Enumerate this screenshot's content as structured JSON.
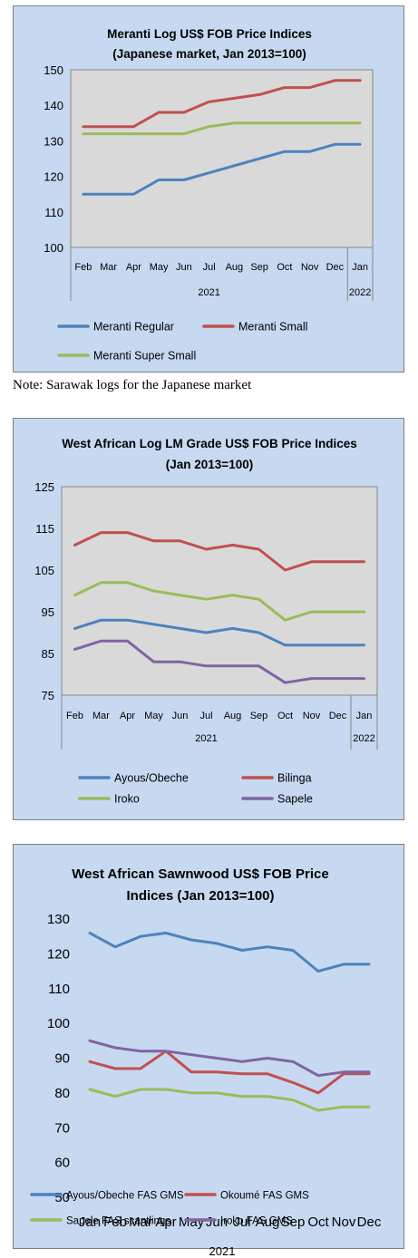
{
  "note": "Note: Sarawak logs for the Japanese market",
  "chart_data": [
    {
      "type": "line",
      "title": "Meranti Log US$ FOB Price Indices",
      "subtitle": "(Japanese market, Jan 2013=100)",
      "categories": [
        "Feb",
        "Mar",
        "Apr",
        "May",
        "Jun",
        "Jul",
        "Aug",
        "Sep",
        "Oct",
        "Nov",
        "Dec",
        "Jan"
      ],
      "year_labels": [
        "2021",
        "2022"
      ],
      "ylim": [
        100,
        150
      ],
      "yticks": [
        100,
        110,
        120,
        130,
        140,
        150
      ],
      "grid": false,
      "legend_position": "bottom",
      "series": [
        {
          "name": "Meranti Regular",
          "color": "#4f81bd",
          "values": [
            115,
            115,
            115,
            119,
            119,
            121,
            123,
            125,
            127,
            127,
            129,
            129
          ]
        },
        {
          "name": "Meranti Small",
          "color": "#c0504d",
          "values": [
            134,
            134,
            134,
            138,
            138,
            141,
            142,
            143,
            145,
            145,
            147,
            147
          ]
        },
        {
          "name": "Meranti Super Small",
          "color": "#9bbb59",
          "values": [
            132,
            132,
            132,
            132,
            132,
            134,
            135,
            135,
            135,
            135,
            135,
            135
          ]
        }
      ]
    },
    {
      "type": "line",
      "title": "West African Log LM Grade US$ FOB Price Indices",
      "subtitle": "(Jan 2013=100)",
      "categories": [
        "Feb",
        "Mar",
        "Apr",
        "May",
        "Jun",
        "Jul",
        "Aug",
        "Sep",
        "Oct",
        "Nov",
        "Dec",
        "Jan"
      ],
      "year_labels": [
        "2021",
        "2022"
      ],
      "ylim": [
        75,
        125
      ],
      "yticks": [
        75,
        85,
        95,
        105,
        115,
        125
      ],
      "grid": false,
      "legend_position": "bottom",
      "series": [
        {
          "name": "Ayous/Obeche",
          "color": "#4f81bd",
          "values": [
            91,
            93,
            93,
            92,
            91,
            90,
            91,
            90,
            87,
            87,
            87,
            87
          ]
        },
        {
          "name": "Bilinga",
          "color": "#c0504d",
          "values": [
            111,
            114,
            114,
            112,
            112,
            110,
            111,
            110,
            105,
            107,
            107,
            107
          ]
        },
        {
          "name": "Iroko",
          "color": "#9bbb59",
          "values": [
            99,
            102,
            102,
            100,
            99,
            98,
            99,
            98,
            93,
            95,
            95,
            95
          ]
        },
        {
          "name": "Sapele",
          "color": "#8064a2",
          "values": [
            86,
            88,
            88,
            83,
            83,
            82,
            82,
            82,
            78,
            79,
            79,
            79
          ]
        }
      ]
    },
    {
      "type": "line",
      "title": "West African Sawnwood US$ FOB Price",
      "subtitle": "Indices (Jan 2013=100)",
      "categories": [
        "Jan",
        "Feb",
        "Mar",
        "Apr",
        "May",
        "Jun",
        "Jul",
        "Aug",
        "Sep",
        "Oct",
        "Nov",
        "Dec"
      ],
      "year_labels": [
        "2021"
      ],
      "ylim": [
        50,
        130
      ],
      "yticks": [
        50,
        60,
        70,
        80,
        90,
        100,
        110,
        120,
        130
      ],
      "grid": false,
      "legend_position": "bottom",
      "series": [
        {
          "name": "Ayous/Obeche FAS GMS",
          "color": "#4f81bd",
          "values": [
            126,
            122,
            125,
            126,
            124,
            123,
            121,
            122,
            121,
            115,
            117,
            117
          ]
        },
        {
          "name": "Okoumé FAS GMS",
          "color": "#c0504d",
          "values": [
            89,
            87,
            87,
            92,
            86,
            86,
            85.5,
            85.5,
            83,
            80,
            85.5,
            85.5
          ]
        },
        {
          "name": "Sapele FAS scantlings",
          "color": "#9bbb59",
          "values": [
            81,
            79,
            81,
            81,
            80,
            80,
            79,
            79,
            78,
            75,
            76,
            76
          ]
        },
        {
          "name": "Iroko FAS GMS",
          "color": "#8064a2",
          "values": [
            95,
            93,
            92,
            92,
            91,
            90,
            89,
            90,
            89,
            85,
            86,
            86
          ]
        }
      ]
    }
  ]
}
